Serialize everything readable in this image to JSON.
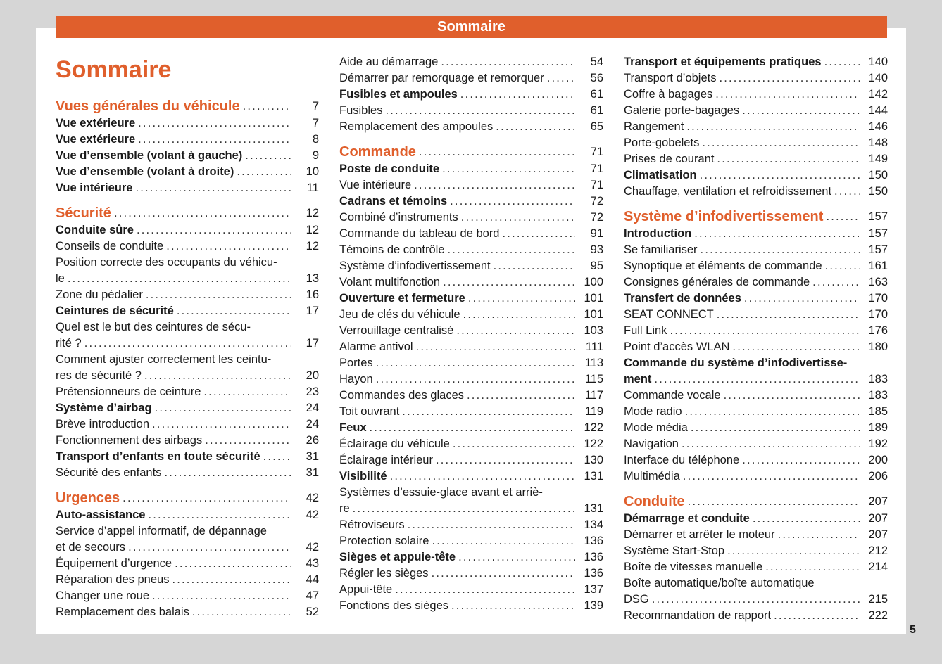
{
  "header": {
    "title": "Sommaire"
  },
  "doc_title": "Sommaire",
  "page_number": "5",
  "colors": {
    "accent": "#e05f2c"
  },
  "columns": [
    [
      {
        "type": "section",
        "text": "Vues générales du véhicule",
        "page": "7"
      },
      {
        "type": "bold",
        "text": "Vue extérieure",
        "page": "7"
      },
      {
        "type": "bold",
        "text": "Vue extérieure",
        "page": "8"
      },
      {
        "type": "bold",
        "text": "Vue d’ensemble (volant à gauche)",
        "page": "9"
      },
      {
        "type": "bold",
        "text": "Vue d’ensemble (volant à droite)",
        "page": "10"
      },
      {
        "type": "bold",
        "text": "Vue intérieure",
        "page": "11"
      },
      {
        "type": "section",
        "text": "Sécurité",
        "page": "12"
      },
      {
        "type": "bold",
        "text": "Conduite sûre",
        "page": "12"
      },
      {
        "type": "normal",
        "text": "Conseils de conduite",
        "page": "12"
      },
      {
        "type": "normal",
        "text": "Position correcte des occupants du véhicu-",
        "text2": "le",
        "page": "13"
      },
      {
        "type": "normal",
        "text": "Zone du pédalier",
        "page": "16"
      },
      {
        "type": "bold",
        "text": "Ceintures de sécurité",
        "page": "17"
      },
      {
        "type": "normal",
        "text": "Quel est le but des ceintures de sécu-",
        "text2": "rité ?",
        "page": "17"
      },
      {
        "type": "normal",
        "text": "Comment ajuster correctement les ceintu-",
        "text2": "res de sécurité ?",
        "page": "20"
      },
      {
        "type": "normal",
        "text": "Prétensionneurs de ceinture",
        "page": "23"
      },
      {
        "type": "bold",
        "text": "Système d’airbag",
        "page": "24"
      },
      {
        "type": "normal",
        "text": "Brève introduction",
        "page": "24"
      },
      {
        "type": "normal",
        "text": "Fonctionnement des airbags",
        "page": "26"
      },
      {
        "type": "bold",
        "text": "Transport d’enfants en toute sécurité",
        "page": "31"
      },
      {
        "type": "normal",
        "text": "Sécurité des enfants",
        "page": "31"
      },
      {
        "type": "section",
        "text": "Urgences",
        "page": "42"
      },
      {
        "type": "bold",
        "text": "Auto-assistance",
        "page": "42"
      },
      {
        "type": "normal",
        "text": "Service d’appel informatif, de dépannage",
        "text2": "et de secours",
        "page": "42"
      },
      {
        "type": "normal",
        "text": "Équipement d’urgence",
        "page": "43"
      },
      {
        "type": "normal",
        "text": "Réparation des pneus",
        "page": "44"
      },
      {
        "type": "normal",
        "text": "Changer une roue",
        "page": "47"
      },
      {
        "type": "normal",
        "text": "Remplacement des balais",
        "page": "52"
      }
    ],
    [
      {
        "type": "normal",
        "text": "Aide au démarrage",
        "page": "54"
      },
      {
        "type": "normal",
        "text": "Démarrer par remorquage et remorquer",
        "page": "56"
      },
      {
        "type": "bold",
        "text": "Fusibles et ampoules",
        "page": "61"
      },
      {
        "type": "normal",
        "text": "Fusibles",
        "page": "61"
      },
      {
        "type": "normal",
        "text": "Remplacement des ampoules",
        "page": "65"
      },
      {
        "type": "section",
        "text": "Commande",
        "page": "71"
      },
      {
        "type": "bold",
        "text": "Poste de conduite",
        "page": "71"
      },
      {
        "type": "normal",
        "text": "Vue intérieure",
        "page": "71"
      },
      {
        "type": "bold",
        "text": "Cadrans et témoins",
        "page": "72"
      },
      {
        "type": "normal",
        "text": "Combiné d’instruments",
        "page": "72"
      },
      {
        "type": "normal",
        "text": "Commande du tableau de bord",
        "page": "91"
      },
      {
        "type": "normal",
        "text": "Témoins de contrôle",
        "page": "93"
      },
      {
        "type": "normal",
        "text": "Système d’infodivertissement",
        "page": "95"
      },
      {
        "type": "normal",
        "text": "Volant multifonction",
        "page": "100"
      },
      {
        "type": "bold",
        "text": "Ouverture et fermeture",
        "page": "101"
      },
      {
        "type": "normal",
        "text": "Jeu de clés du véhicule",
        "page": "101"
      },
      {
        "type": "normal",
        "text": "Verrouillage centralisé",
        "page": "103"
      },
      {
        "type": "normal",
        "text": "Alarme antivol",
        "page": "111"
      },
      {
        "type": "normal",
        "text": "Portes",
        "page": "113"
      },
      {
        "type": "normal",
        "text": "Hayon",
        "page": "115"
      },
      {
        "type": "normal",
        "text": "Commandes des glaces",
        "page": "117"
      },
      {
        "type": "normal",
        "text": "Toit ouvrant",
        "page": "119"
      },
      {
        "type": "bold",
        "text": "Feux",
        "page": "122"
      },
      {
        "type": "normal",
        "text": "Éclairage du véhicule",
        "page": "122"
      },
      {
        "type": "normal",
        "text": "Éclairage intérieur",
        "page": "130"
      },
      {
        "type": "bold",
        "text": "Visibilité",
        "page": "131"
      },
      {
        "type": "normal",
        "text": "Systèmes d’essuie-glace avant et arriè-",
        "text2": "re",
        "page": "131"
      },
      {
        "type": "normal",
        "text": "Rétroviseurs",
        "page": "134"
      },
      {
        "type": "normal",
        "text": "Protection solaire",
        "page": "136"
      },
      {
        "type": "bold",
        "text": "Sièges et appuie-tête",
        "page": "136"
      },
      {
        "type": "normal",
        "text": "Régler les sièges",
        "page": "136"
      },
      {
        "type": "normal",
        "text": "Appui-tête",
        "page": "137"
      },
      {
        "type": "normal",
        "text": "Fonctions des sièges",
        "page": "139"
      }
    ],
    [
      {
        "type": "bold",
        "text": "Transport et équipements pratiques",
        "page": "140"
      },
      {
        "type": "normal",
        "text": "Transport d’objets",
        "page": "140"
      },
      {
        "type": "normal",
        "text": "Coffre à bagages",
        "page": "142"
      },
      {
        "type": "normal",
        "text": "Galerie porte-bagages",
        "page": "144"
      },
      {
        "type": "normal",
        "text": "Rangement",
        "page": "146"
      },
      {
        "type": "normal",
        "text": "Porte-gobelets",
        "page": "148"
      },
      {
        "type": "normal",
        "text": "Prises de courant",
        "page": "149"
      },
      {
        "type": "bold",
        "text": "Climatisation",
        "page": "150"
      },
      {
        "type": "normal",
        "text": "Chauffage, ventilation et refroidissement",
        "page": "150"
      },
      {
        "type": "section",
        "text": "Système d’infodivertissement",
        "page": "157"
      },
      {
        "type": "bold",
        "text": "Introduction",
        "page": "157"
      },
      {
        "type": "normal",
        "text": "Se familiariser",
        "page": "157"
      },
      {
        "type": "normal",
        "text": "Synoptique et éléments de commande",
        "page": "161"
      },
      {
        "type": "normal",
        "text": "Consignes générales de commande",
        "page": "163"
      },
      {
        "type": "bold",
        "text": "Transfert de données",
        "page": "170"
      },
      {
        "type": "normal",
        "text": "SEAT CONNECT",
        "page": "170"
      },
      {
        "type": "normal",
        "text": "Full Link",
        "page": "176"
      },
      {
        "type": "normal",
        "text": "Point d’accès WLAN",
        "page": "180"
      },
      {
        "type": "bold",
        "text": "Commande du système d’infodivertisse-",
        "text2": "ment",
        "page": "183"
      },
      {
        "type": "normal",
        "text": "Commande vocale",
        "page": "183"
      },
      {
        "type": "normal",
        "text": "Mode radio",
        "page": "185"
      },
      {
        "type": "normal",
        "text": "Mode média",
        "page": "189"
      },
      {
        "type": "normal",
        "text": "Navigation",
        "page": "192"
      },
      {
        "type": "normal",
        "text": "Interface du téléphone",
        "page": "200"
      },
      {
        "type": "normal",
        "text": "Multimédia",
        "page": "206"
      },
      {
        "type": "section",
        "text": "Conduite",
        "page": "207"
      },
      {
        "type": "bold",
        "text": "Démarrage et conduite",
        "page": "207"
      },
      {
        "type": "normal",
        "text": "Démarrer et arrêter le moteur",
        "page": "207"
      },
      {
        "type": "normal",
        "text": "Système Start-Stop",
        "page": "212"
      },
      {
        "type": "normal",
        "text": "Boîte de vitesses manuelle",
        "page": "214"
      },
      {
        "type": "normal",
        "text": "Boîte automatique/boîte automatique",
        "text2": "DSG",
        "page": "215"
      },
      {
        "type": "normal",
        "text": "Recommandation de rapport",
        "page": "222"
      }
    ]
  ]
}
